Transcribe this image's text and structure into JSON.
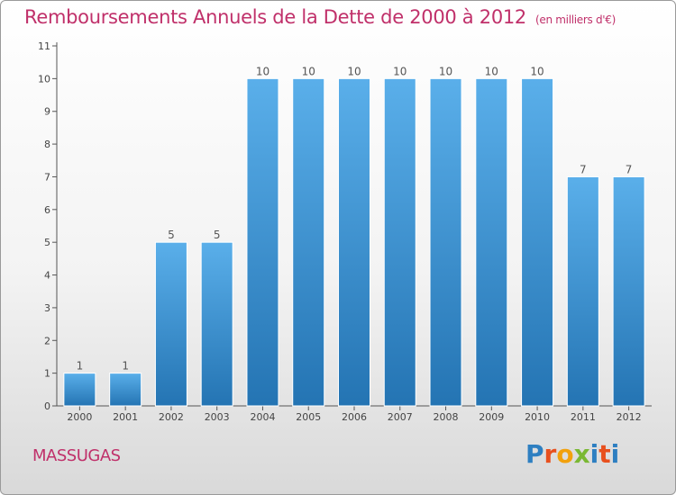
{
  "title": "Remboursements Annuels de la Dette de 2000 à 2012",
  "subtitle": "(en milliers d'€)",
  "city": "MASSUGAS",
  "logo": {
    "text": "Proxiti",
    "letters": [
      "P",
      "r",
      "o",
      "x",
      "i",
      "t",
      "i"
    ],
    "colors": [
      "#2e7fc1",
      "#e8501e",
      "#f2a10d",
      "#7ab833",
      "#2e7fc1",
      "#e8501e",
      "#2e7fc1"
    ]
  },
  "colors": {
    "accent": "#c0306a",
    "bar_top": "#5aafea",
    "bar_bottom": "#2474b3",
    "axis": "#555555"
  },
  "chart_data": {
    "type": "bar",
    "categories": [
      "2000",
      "2001",
      "2002",
      "2003",
      "2004",
      "2005",
      "2006",
      "2007",
      "2008",
      "2009",
      "2010",
      "2011",
      "2012"
    ],
    "values": [
      1,
      1,
      5,
      5,
      10,
      10,
      10,
      10,
      10,
      10,
      10,
      7,
      7
    ],
    "value_labels": [
      "1",
      "1",
      "5",
      "5",
      "10",
      "10",
      "10",
      "10",
      "10",
      "10",
      "10",
      "7",
      "7"
    ],
    "title": "Remboursements Annuels de la Dette de 2000 à 2012",
    "xlabel": "",
    "ylabel": "",
    "ylim": [
      0,
      11
    ],
    "yticks": [
      0,
      1,
      2,
      3,
      4,
      5,
      6,
      7,
      8,
      9,
      10,
      11
    ],
    "grid": false
  }
}
